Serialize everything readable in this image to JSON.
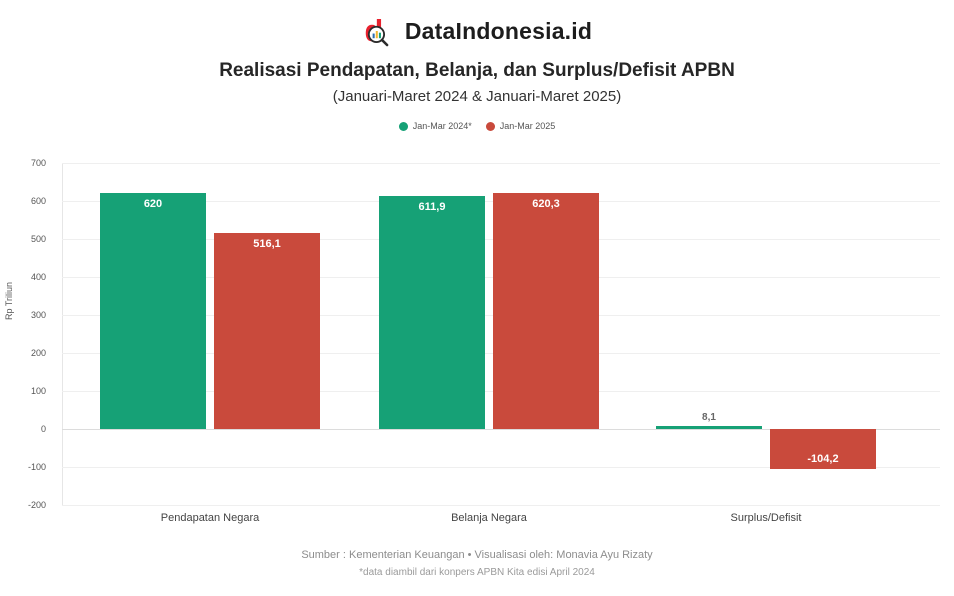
{
  "brand": {
    "name": "DataIndonesia.id"
  },
  "header": {
    "title": "Realisasi Pendapatan, Belanja, dan Surplus/Defisit APBN",
    "subtitle": "(Januari-Maret 2024 & Januari-Maret 2025)"
  },
  "colors": {
    "series_2024": "#16A176",
    "series_2025": "#C94A3C",
    "logo_red": "#E8212E"
  },
  "chart_data": {
    "type": "bar",
    "categories": [
      "Pendapatan Negara",
      "Belanja Negara",
      "Surplus/Defisit"
    ],
    "series": [
      {
        "name": "Jan-Mar 2024*",
        "color": "#16A176",
        "values": [
          620,
          611.9,
          8.1
        ],
        "labels": [
          "620",
          "611,9",
          "8,1"
        ]
      },
      {
        "name": "Jan-Mar 2025",
        "color": "#C94A3C",
        "values": [
          516.1,
          620.3,
          -104.2
        ],
        "labels": [
          "516,1",
          "620,3",
          "-104,2"
        ]
      }
    ],
    "title": "Realisasi Pendapatan, Belanja, dan Surplus/Defisit APBN",
    "xlabel": "",
    "ylabel": "Rp Triliun",
    "ylim": [
      -200,
      700
    ],
    "ytick_step": 100,
    "grid": true,
    "legend_position": "top"
  },
  "footer": {
    "source": "Sumber : Kementerian Keuangan • Visualisasi oleh: Monavia Ayu Rizaty",
    "note": "*data diambil dari konpers APBN Kita edisi April 2024"
  }
}
